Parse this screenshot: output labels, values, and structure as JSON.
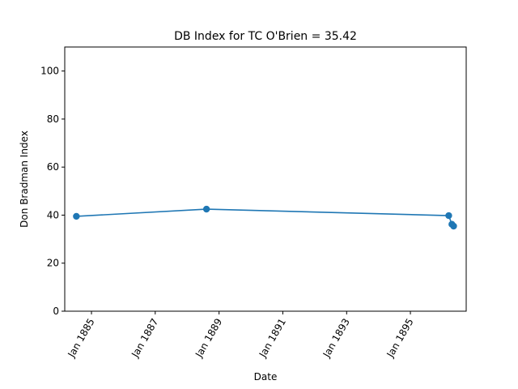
{
  "chart_data": {
    "type": "line",
    "title": "DB Index for TC O'Brien = 35.42",
    "xlabel": "Date",
    "ylabel": "Don Bradman Index",
    "ylim": [
      0,
      110
    ],
    "xlim": [
      "1884-03-01",
      "1896-10-01"
    ],
    "x_ticks": [
      {
        "date": "1885-01-01",
        "label": "Jan 1885"
      },
      {
        "date": "1887-01-01",
        "label": "Jan 1887"
      },
      {
        "date": "1889-01-01",
        "label": "Jan 1889"
      },
      {
        "date": "1891-01-01",
        "label": "Jan 1891"
      },
      {
        "date": "1893-01-01",
        "label": "Jan 1893"
      },
      {
        "date": "1895-01-01",
        "label": "Jan 1895"
      }
    ],
    "y_ticks": [
      0,
      20,
      40,
      60,
      80,
      100
    ],
    "grid": false,
    "series": [
      {
        "color": "#1f77b4",
        "points": [
          {
            "x": "1884-07-12",
            "y": 39.5
          },
          {
            "x": "1888-08-10",
            "y": 42.5
          },
          {
            "x": "1896-03-15",
            "y": 39.8
          },
          {
            "x": "1896-04-20",
            "y": 36.2
          },
          {
            "x": "1896-05-10",
            "y": 35.42
          }
        ]
      }
    ]
  }
}
